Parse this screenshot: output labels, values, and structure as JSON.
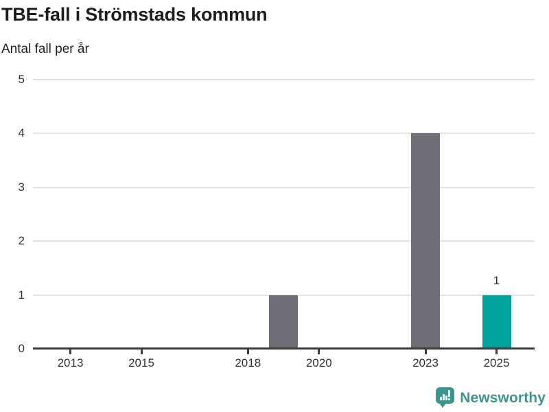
{
  "header": {
    "title": "TBE-fall i Strömstads kommun",
    "subtitle": "Antal fall per år"
  },
  "chart_data": {
    "type": "bar",
    "title": "TBE-fall i Strömstads kommun",
    "subtitle": "Antal fall per år",
    "xlabel": "",
    "ylabel": "Antal fall per år",
    "x": [
      2019,
      2023,
      2025
    ],
    "values": [
      1,
      4,
      1
    ],
    "bars": [
      {
        "year": 2019,
        "value": 1,
        "color": "#6E6E76",
        "data_label": null
      },
      {
        "year": 2023,
        "value": 4,
        "color": "#6E6E76",
        "data_label": null
      },
      {
        "year": 2025,
        "value": 1,
        "color": "#00A39B",
        "data_label": "1"
      }
    ],
    "x_ticks": [
      2013,
      2015,
      2018,
      2020,
      2023,
      2025
    ],
    "y_ticks": [
      0,
      1,
      2,
      3,
      4,
      5
    ],
    "xlim": [
      2012,
      2026
    ],
    "ylim": [
      0,
      5
    ],
    "grid": "horizontal",
    "legend": "none",
    "colors": {
      "bar_default": "#6E6E76",
      "bar_highlight": "#00A39B",
      "gridline": "#E3E3E3",
      "axis_line": "#3D3D3D",
      "axis_text": "#333333"
    }
  },
  "branding": {
    "wordmark": "Newsworthy",
    "color": "#3A968F",
    "icon": "newsworthy-speech-bubble-barchart-icon"
  }
}
